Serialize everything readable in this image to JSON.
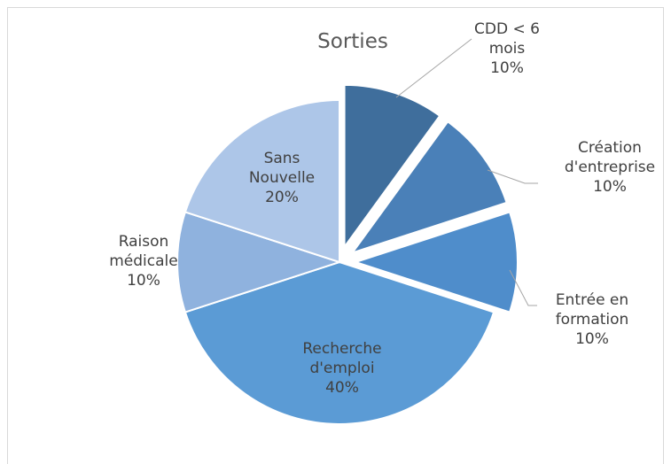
{
  "chart_data": {
    "type": "pie",
    "title": "Sorties",
    "categories": [
      "CDD < 6 mois",
      "Création d'entreprise",
      "Entrée en formation",
      "Recherche d'emploi",
      "Raison médicale",
      "Sans Nouvelle"
    ],
    "values": [
      10,
      10,
      10,
      40,
      10,
      20
    ],
    "value_labels": [
      "10%",
      "10%",
      "10%",
      "40%",
      "10%",
      "20%"
    ],
    "colors": [
      "#3f6e9c",
      "#4a80b8",
      "#4f8dcb",
      "#5b9bd5",
      "#8fb2de",
      "#adc6e8"
    ]
  }
}
